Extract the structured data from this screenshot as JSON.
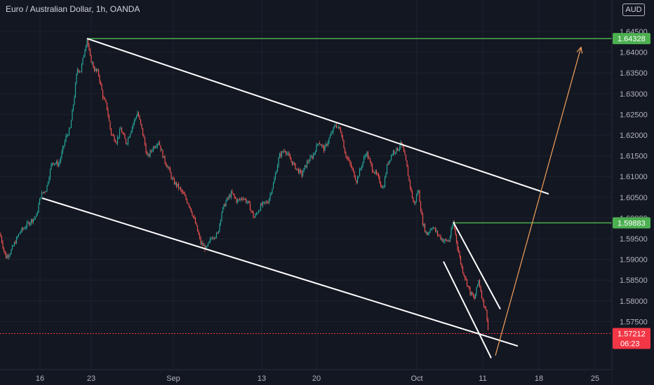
{
  "header": {
    "title": "Euro / Australian Dollar, 1h, OANDA",
    "currency_button": "AUD"
  },
  "chart_data": {
    "type": "candlestick",
    "symbol": "EURAUD",
    "interval": "1h",
    "y_ticks": [
      "1.64500",
      "1.64000",
      "1.63500",
      "1.63000",
      "1.62500",
      "1.62000",
      "1.61500",
      "1.61000",
      "1.60500",
      "1.60000",
      "1.59500",
      "1.59000",
      "1.58500",
      "1.58000",
      "1.57500"
    ],
    "ylim": [
      1.567,
      1.648
    ],
    "x_ticks": [
      "16",
      "23",
      "Sep",
      "13",
      "20",
      "Oct",
      "11",
      "18",
      "25"
    ],
    "price_labels": {
      "level_high": "1.64328",
      "level_mid": "1.59883",
      "current": "1.57212",
      "countdown": "06:23"
    },
    "levels": [
      {
        "value": 1.64328,
        "color": "#4caf50"
      },
      {
        "value": 1.59883,
        "color": "#4caf50"
      },
      {
        "value": 1.57212,
        "color": "#f23645"
      }
    ],
    "price_path": [
      [
        0,
        1.5962
      ],
      [
        8,
        1.5905
      ],
      [
        15,
        1.5918
      ],
      [
        28,
        1.5965
      ],
      [
        42,
        1.599
      ],
      [
        52,
        1.6005
      ],
      [
        58,
        1.6055
      ],
      [
        66,
        1.607
      ],
      [
        74,
        1.6135
      ],
      [
        84,
        1.613
      ],
      [
        94,
        1.6195
      ],
      [
        100,
        1.6215
      ],
      [
        106,
        1.6295
      ],
      [
        110,
        1.636
      ],
      [
        115,
        1.6355
      ],
      [
        120,
        1.64
      ],
      [
        124,
        1.6433
      ],
      [
        128,
        1.639
      ],
      [
        134,
        1.636
      ],
      [
        140,
        1.635
      ],
      [
        147,
        1.629
      ],
      [
        152,
        1.627
      ],
      [
        158,
        1.6205
      ],
      [
        166,
        1.6185
      ],
      [
        172,
        1.6215
      ],
      [
        180,
        1.618
      ],
      [
        187,
        1.6215
      ],
      [
        196,
        1.6255
      ],
      [
        204,
        1.62
      ],
      [
        210,
        1.6145
      ],
      [
        218,
        1.617
      ],
      [
        226,
        1.6185
      ],
      [
        234,
        1.614
      ],
      [
        240,
        1.612
      ],
      [
        246,
        1.609
      ],
      [
        254,
        1.6075
      ],
      [
        262,
        1.6055
      ],
      [
        270,
        1.603
      ],
      [
        278,
        1.599
      ],
      [
        286,
        1.594
      ],
      [
        294,
        1.5925
      ],
      [
        302,
        1.5955
      ],
      [
        310,
        1.596
      ],
      [
        316,
        1.6015
      ],
      [
        322,
        1.604
      ],
      [
        330,
        1.606
      ],
      [
        338,
        1.604
      ],
      [
        346,
        1.605
      ],
      [
        354,
        1.6035
      ],
      [
        362,
        1.6
      ],
      [
        372,
        1.603
      ],
      [
        382,
        1.604
      ],
      [
        390,
        1.6085
      ],
      [
        398,
        1.615
      ],
      [
        406,
        1.6165
      ],
      [
        414,
        1.614
      ],
      [
        422,
        1.612
      ],
      [
        430,
        1.6105
      ],
      [
        438,
        1.6135
      ],
      [
        446,
        1.615
      ],
      [
        454,
        1.6185
      ],
      [
        462,
        1.6165
      ],
      [
        470,
        1.6195
      ],
      [
        478,
        1.6225
      ],
      [
        486,
        1.621
      ],
      [
        492,
        1.6155
      ],
      [
        500,
        1.6125
      ],
      [
        508,
        1.609
      ],
      [
        516,
        1.613
      ],
      [
        522,
        1.616
      ],
      [
        530,
        1.612
      ],
      [
        538,
        1.61
      ],
      [
        546,
        1.607
      ],
      [
        552,
        1.613
      ],
      [
        560,
        1.616
      ],
      [
        566,
        1.6165
      ],
      [
        572,
        1.618
      ],
      [
        578,
        1.614
      ],
      [
        584,
        1.608
      ],
      [
        590,
        1.603
      ],
      [
        596,
        1.607
      ],
      [
        602,
        1.599
      ],
      [
        608,
        1.596
      ],
      [
        616,
        1.598
      ],
      [
        624,
        1.596
      ],
      [
        632,
        1.5945
      ],
      [
        640,
        1.5945
      ],
      [
        646,
        1.599
      ],
      [
        652,
        1.593
      ],
      [
        658,
        1.588
      ],
      [
        664,
        1.585
      ],
      [
        670,
        1.582
      ],
      [
        676,
        1.5805
      ],
      [
        682,
        1.585
      ],
      [
        688,
        1.58
      ],
      [
        692,
        1.578
      ],
      [
        694,
        1.576
      ],
      [
        696,
        1.5721
      ]
    ]
  },
  "drawings": {
    "channel_upper": [
      [
        124,
        1.6433
      ],
      [
        782,
        1.6058
      ]
    ],
    "channel_lower": [
      [
        60,
        1.6048
      ],
      [
        738,
        1.5691
      ]
    ],
    "wedge_upper": [
      [
        646,
        1.599
      ],
      [
        713,
        1.578
      ]
    ],
    "wedge_lower": [
      [
        632,
        1.5895
      ],
      [
        700,
        1.5662
      ]
    ],
    "projection": [
      [
        706,
        1.5668
      ],
      [
        828,
        1.6412
      ]
    ]
  }
}
